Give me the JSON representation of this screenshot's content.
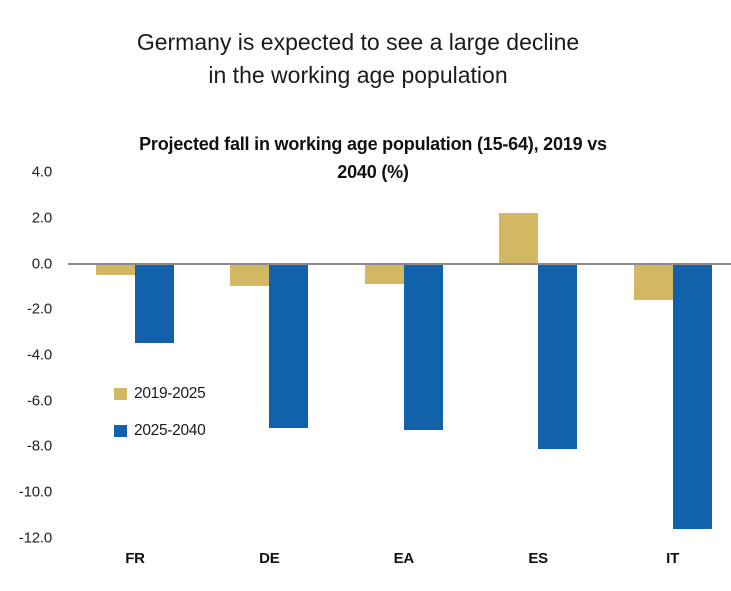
{
  "page": {
    "heading_line1": "Germany is expected to see a large decline",
    "heading_line2": "in the working age population"
  },
  "chart_data": {
    "type": "bar",
    "title": "Projected fall in working age population (15-64), 2019 vs 2040 (%)",
    "title_lines": [
      "Projected fall in working age population (15-64), 2019 vs",
      "2040 (%)"
    ],
    "categories": [
      "FR",
      "DE",
      "EA",
      "ES",
      "IT"
    ],
    "series": [
      {
        "name": "2019-2025",
        "color": "#d3b863",
        "values": [
          -0.5,
          -1.0,
          -0.9,
          2.2,
          -1.6
        ]
      },
      {
        "name": "2025-2040",
        "color": "#1261ab",
        "values": [
          -3.5,
          -7.2,
          -7.3,
          -8.1,
          -11.6
        ]
      }
    ],
    "ylabel": "",
    "xlabel": "",
    "ylim": [
      -12.0,
      4.0
    ],
    "y_tick_labels": [
      "4.0",
      "2.0",
      "0.0",
      "-2.0",
      "-4.0",
      "-6.0",
      "-8.0",
      "-10.0",
      "-12.0"
    ],
    "y_tick_values": [
      4,
      2,
      0,
      -2,
      -4,
      -6,
      -8,
      -10,
      -12
    ],
    "grid": false,
    "legend_position": "middle-left",
    "axis_line_color": "#8c8c8c"
  }
}
